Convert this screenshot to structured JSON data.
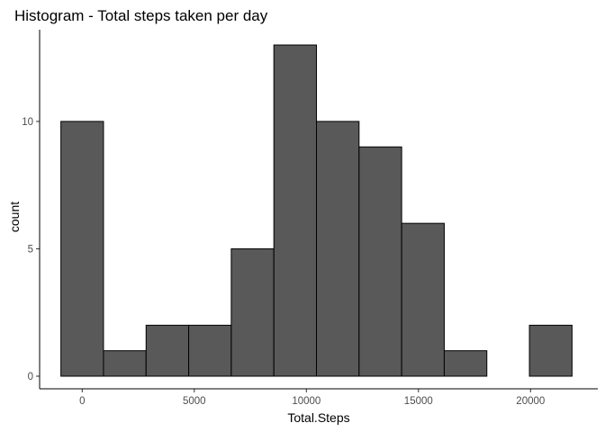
{
  "chart_data": {
    "type": "bar",
    "title": "Histogram - Total steps taken per day",
    "xlabel": "Total.Steps",
    "ylabel": "count",
    "bin_width": 1900,
    "bins": [
      {
        "x_start": -950,
        "x_end": 950,
        "count": 10
      },
      {
        "x_start": 950,
        "x_end": 2850,
        "count": 1
      },
      {
        "x_start": 2850,
        "x_end": 4750,
        "count": 2
      },
      {
        "x_start": 4750,
        "x_end": 6650,
        "count": 2
      },
      {
        "x_start": 6650,
        "x_end": 8550,
        "count": 5
      },
      {
        "x_start": 8550,
        "x_end": 10450,
        "count": 13
      },
      {
        "x_start": 10450,
        "x_end": 12350,
        "count": 10
      },
      {
        "x_start": 12350,
        "x_end": 14250,
        "count": 9
      },
      {
        "x_start": 14250,
        "x_end": 16150,
        "count": 6
      },
      {
        "x_start": 16150,
        "x_end": 18050,
        "count": 1
      },
      {
        "x_start": 18050,
        "x_end": 19950,
        "count": 0
      },
      {
        "x_start": 19950,
        "x_end": 21850,
        "count": 2
      }
    ],
    "xlim": [
      -1900,
      23000
    ],
    "ylim": [
      0,
      13.7
    ],
    "x_ticks": [
      0,
      5000,
      10000,
      15000,
      20000
    ],
    "x_tick_labels": [
      "0",
      "5000",
      "10000",
      "15000",
      "20000"
    ],
    "y_ticks": [
      0,
      5,
      10
    ],
    "y_tick_labels": [
      "0",
      "5",
      "10"
    ],
    "grid": false,
    "legend": "none",
    "bar_fill": "#595959",
    "bar_stroke": "#000000"
  }
}
